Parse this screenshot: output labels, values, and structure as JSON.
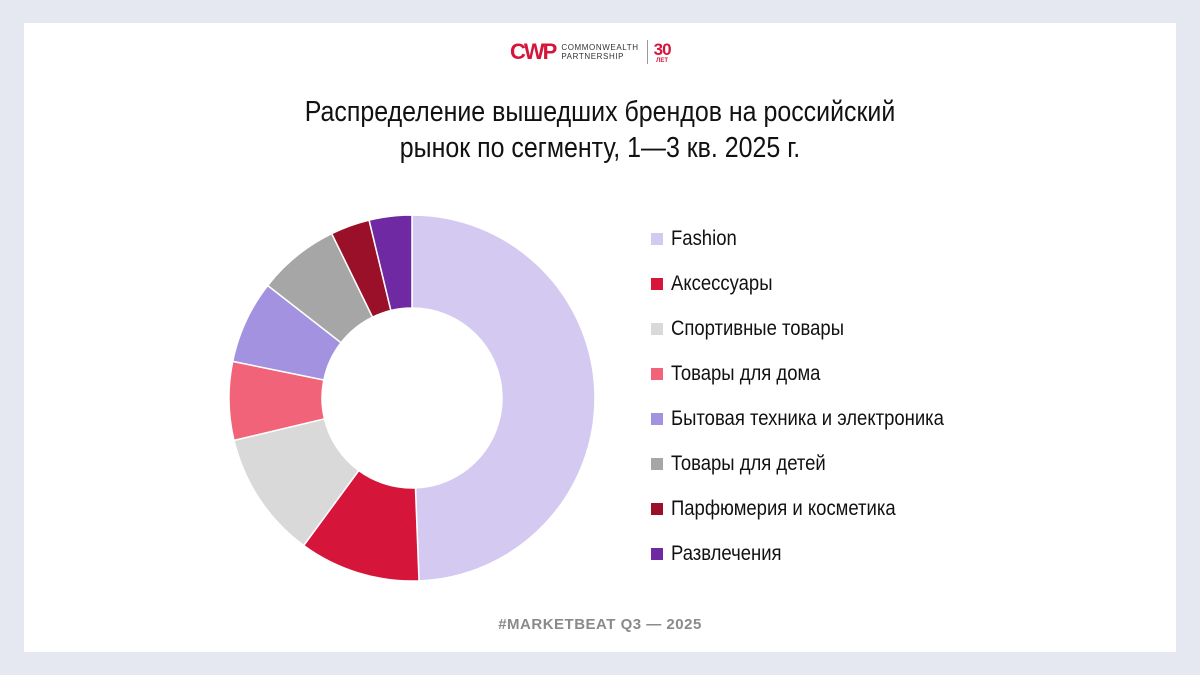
{
  "logo": {
    "mark": "CWP",
    "line1": "COMMONWEALTH",
    "line2": "PARTNERSHIP",
    "years": "30",
    "years_unit": "ЛЕТ"
  },
  "footer": "#MARKETBEAT Q3  —  2025",
  "chart_data": {
    "type": "donut",
    "title": [
      "Распределение вышедших брендов на российский",
      "рынок по сегменту, 1—3 кв. 2025 г."
    ],
    "unit": "%",
    "legend_position": "right",
    "categories": [
      "Fashion",
      "Аксессуары",
      "Спортивные товары",
      "Товары для дома",
      "Бытовая техника и электроника",
      "Товары для детей",
      "Парфюмерия и косметика",
      "Развлечения"
    ],
    "values": [
      48.5,
      10.5,
      11.0,
      6.8,
      7.2,
      7.1,
      3.4,
      3.7
    ],
    "colors": [
      "#d4c9f0",
      "#d6153a",
      "#d9d9d9",
      "#f06378",
      "#a292df",
      "#a6a6a6",
      "#9a1028",
      "#6f2aa3"
    ]
  }
}
